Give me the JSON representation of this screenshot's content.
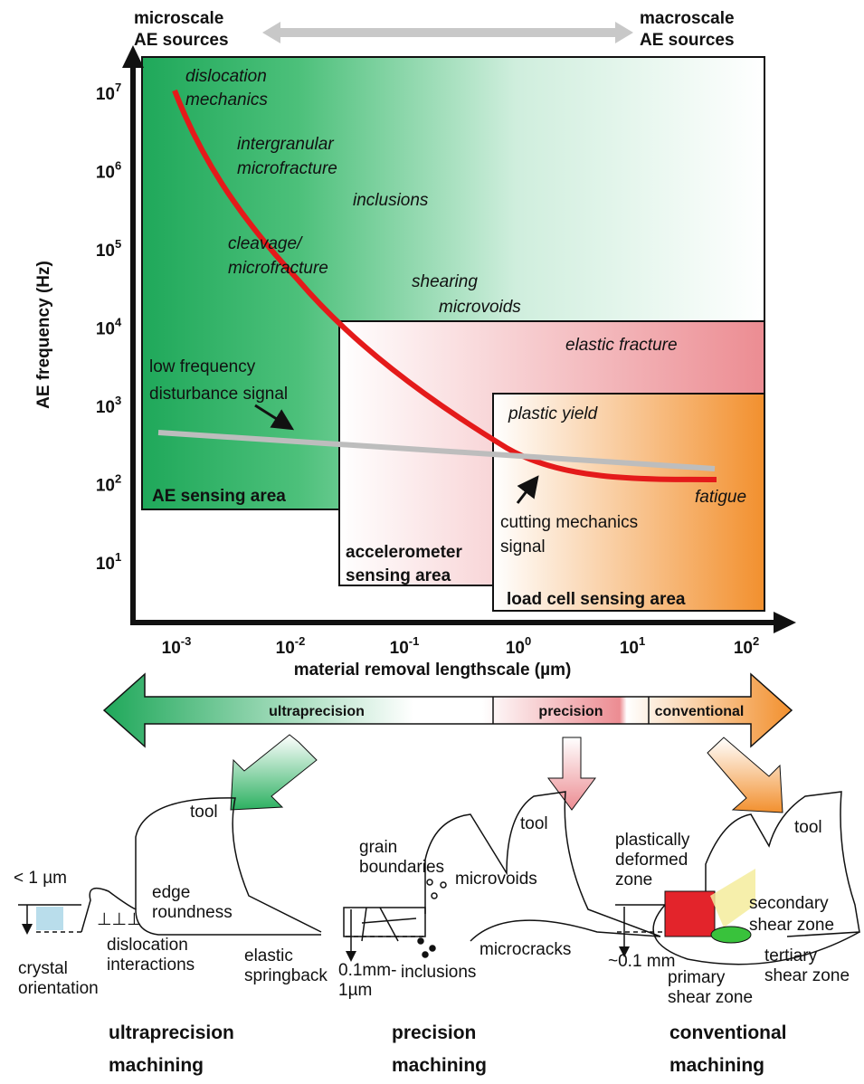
{
  "header": {
    "left": [
      "microscale",
      "AE sources"
    ],
    "right": [
      "macroscale",
      "AE sources"
    ]
  },
  "chart": {
    "y_axis_label": "AE frequency (Hz)",
    "x_axis_label": "material removal lengthscale (µm)",
    "y_ticks": [
      {
        "base": "10",
        "exp": "7"
      },
      {
        "base": "10",
        "exp": "6"
      },
      {
        "base": "10",
        "exp": "5"
      },
      {
        "base": "10",
        "exp": "4"
      },
      {
        "base": "10",
        "exp": "3"
      },
      {
        "base": "10",
        "exp": "2"
      },
      {
        "base": "10",
        "exp": "1"
      }
    ],
    "x_ticks": [
      {
        "base": "10",
        "exp": "-3"
      },
      {
        "base": "10",
        "exp": "-2"
      },
      {
        "base": "10",
        "exp": "-1"
      },
      {
        "base": "10",
        "exp": "0"
      },
      {
        "base": "10",
        "exp": "1"
      },
      {
        "base": "10",
        "exp": "2"
      }
    ],
    "sources": [
      [
        "dislocation",
        "mechanics"
      ],
      [
        "intergranular",
        "microfracture"
      ],
      [
        "inclusions"
      ],
      [
        "cleavage/",
        "microfracture"
      ],
      [
        "shearing",
        "microvoids"
      ],
      [
        "elastic fracture"
      ],
      [
        "plastic yield"
      ],
      [
        "fatigue"
      ]
    ],
    "areas": [
      [
        "AE sensing area"
      ],
      [
        "accelerometer",
        "sensing area"
      ],
      [
        "load cell sensing area"
      ]
    ],
    "annotations": {
      "disturbance": [
        "low frequency",
        "disturbance signal"
      ],
      "cutting": [
        "cutting mechanics",
        "signal"
      ]
    }
  },
  "scale_bar": [
    "ultraprecision",
    "precision",
    "conventional"
  ],
  "panels": [
    {
      "title": [
        "ultraprecision",
        "machining"
      ],
      "labels": [
        [
          "tool"
        ],
        [
          "edge",
          "roundness"
        ],
        [
          "< 1 µm"
        ],
        [
          "dislocation",
          "interactions"
        ],
        [
          "elastic",
          "springback"
        ],
        [
          "crystal",
          "orientation"
        ]
      ]
    },
    {
      "title": [
        "precision",
        "machining"
      ],
      "labels": [
        [
          "tool"
        ],
        [
          "grain",
          "boundaries"
        ],
        [
          "microvoids"
        ],
        [
          "microcracks"
        ],
        [
          "inclusions"
        ],
        [
          "0.1mm-",
          "1µm"
        ]
      ]
    },
    {
      "title": [
        "conventional",
        "machining"
      ],
      "labels": [
        [
          "tool"
        ],
        [
          "plastically",
          "deformed",
          "zone"
        ],
        [
          "secondary",
          "shear zone"
        ],
        [
          "~0.1 mm"
        ],
        [
          "primary",
          "shear zone"
        ],
        [
          "tertiary",
          "shear zone"
        ]
      ]
    }
  ]
}
